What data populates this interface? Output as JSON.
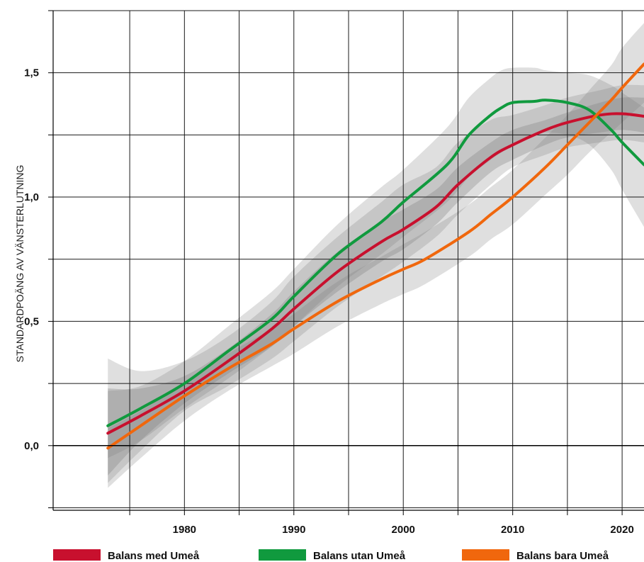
{
  "chart_data": {
    "type": "line",
    "title": "",
    "xlabel": "",
    "ylabel": "STANDARDPOÄNG AV VÄNSTERLUTNING",
    "xlim": [
      1968,
      2022
    ],
    "ylim": [
      -0.26,
      1.75
    ],
    "x_ticks": [
      {
        "value": 1980,
        "label": "1980"
      },
      {
        "value": 1990,
        "label": "1990"
      },
      {
        "value": 2000,
        "label": "2000"
      },
      {
        "value": 2010,
        "label": "2010"
      },
      {
        "value": 2020,
        "label": "2020"
      }
    ],
    "y_ticks": [
      {
        "value": 0,
        "label": "0,0"
      },
      {
        "value": 0.5,
        "label": "0,5"
      },
      {
        "value": 1.0,
        "label": "1,0"
      },
      {
        "value": 1.5,
        "label": "1,5"
      }
    ],
    "grid": true,
    "legend_position": "bottom",
    "series": [
      {
        "name": "Balans med Umeå",
        "color": "#c8102e",
        "x": [
          1973,
          1976,
          1980,
          1984,
          1988,
          1990,
          1994,
          1998,
          2000,
          2003,
          2005,
          2008,
          2010,
          2013,
          2015,
          2018,
          2020,
          2022
        ],
        "y": [
          0.05,
          0.12,
          0.22,
          0.34,
          0.47,
          0.55,
          0.7,
          0.82,
          0.87,
          0.96,
          1.05,
          1.16,
          1.21,
          1.27,
          1.3,
          1.33,
          1.335,
          1.325
        ],
        "band_outer": {
          "lower": [
            -0.15,
            -0.02,
            0.14,
            0.24,
            0.35,
            0.42,
            0.56,
            0.68,
            0.74,
            0.84,
            0.93,
            1.05,
            1.12,
            1.17,
            1.2,
            1.22,
            1.23,
            1.22
          ],
          "upper": [
            0.35,
            0.3,
            0.34,
            0.44,
            0.58,
            0.68,
            0.84,
            0.98,
            1.05,
            1.12,
            1.22,
            1.31,
            1.33,
            1.37,
            1.4,
            1.43,
            1.45,
            1.45
          ]
        },
        "band_inner": {
          "lower": [
            -0.12,
            0.02,
            0.17,
            0.29,
            0.4,
            0.48,
            0.62,
            0.74,
            0.79,
            0.89,
            0.98,
            1.1,
            1.15,
            1.21,
            1.24,
            1.26,
            1.27,
            1.26
          ],
          "upper": [
            0.23,
            0.23,
            0.28,
            0.39,
            0.53,
            0.62,
            0.78,
            0.9,
            0.95,
            1.03,
            1.12,
            1.22,
            1.27,
            1.31,
            1.34,
            1.38,
            1.4,
            1.4
          ]
        }
      },
      {
        "name": "Balans utan Umeå",
        "color": "#109a3e",
        "x": [
          1973,
          1976,
          1980,
          1984,
          1988,
          1990,
          1994,
          1998,
          2000,
          2004,
          2006,
          2008,
          2009,
          2010,
          2012,
          2013,
          2015,
          2017,
          2019,
          2020,
          2022
        ],
        "y": [
          0.08,
          0.15,
          0.25,
          0.38,
          0.51,
          0.6,
          0.77,
          0.9,
          0.98,
          1.13,
          1.25,
          1.33,
          1.36,
          1.38,
          1.385,
          1.39,
          1.38,
          1.35,
          1.27,
          1.22,
          1.13
        ],
        "band_outer": {
          "lower": [
            -0.05,
            0.02,
            0.15,
            0.27,
            0.4,
            0.48,
            0.64,
            0.77,
            0.84,
            0.98,
            1.08,
            1.15,
            1.18,
            1.21,
            1.25,
            1.26,
            1.25,
            1.21,
            1.11,
            1.03,
            0.88
          ],
          "upper": [
            0.22,
            0.24,
            0.34,
            0.48,
            0.62,
            0.71,
            0.89,
            1.04,
            1.11,
            1.28,
            1.4,
            1.48,
            1.51,
            1.52,
            1.52,
            1.51,
            1.5,
            1.49,
            1.45,
            1.42,
            1.36
          ]
        }
      },
      {
        "name": "Balans bara Umeå",
        "color": "#f0670d",
        "x": [
          1973,
          1976,
          1980,
          1984,
          1988,
          1990,
          1994,
          1998,
          2000,
          2002,
          2006,
          2008,
          2010,
          2013,
          2015,
          2017,
          2019,
          2020,
          2022
        ],
        "y": [
          -0.01,
          0.08,
          0.2,
          0.31,
          0.41,
          0.47,
          0.58,
          0.67,
          0.71,
          0.75,
          0.86,
          0.93,
          1.0,
          1.12,
          1.21,
          1.3,
          1.39,
          1.44,
          1.535
        ],
        "band_outer": {
          "lower": [
            -0.17,
            -0.05,
            0.1,
            0.22,
            0.32,
            0.37,
            0.48,
            0.57,
            0.61,
            0.65,
            0.76,
            0.83,
            0.89,
            1.01,
            1.09,
            1.18,
            1.26,
            1.3,
            1.38
          ],
          "upper": [
            0.07,
            0.14,
            0.25,
            0.37,
            0.47,
            0.53,
            0.66,
            0.76,
            0.81,
            0.86,
            0.97,
            1.04,
            1.11,
            1.24,
            1.33,
            1.43,
            1.53,
            1.6,
            1.7
          ]
        }
      }
    ]
  }
}
